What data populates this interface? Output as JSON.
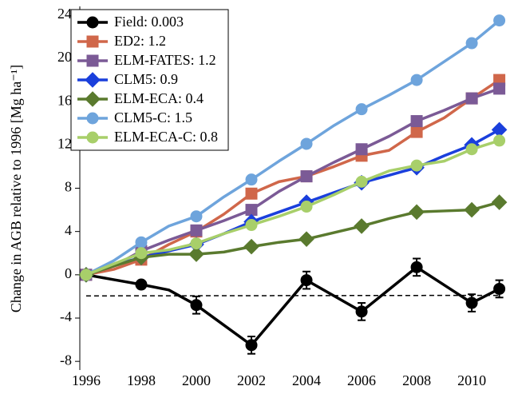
{
  "chart_data": {
    "type": "line",
    "y_label": "Change in AGB relative to 1996 [Mg ha⁻¹]",
    "x": [
      1996,
      1997,
      1998,
      1999,
      2000,
      2001,
      2002,
      2003,
      2004,
      2005,
      2006,
      2007,
      2008,
      2009,
      2010,
      2011
    ],
    "xlim": [
      1995.77,
      2011.33
    ],
    "xticks": [
      1996,
      1998,
      2000,
      2002,
      2004,
      2006,
      2008,
      2010
    ],
    "ylim": [
      -8.8,
      24.8
    ],
    "yticks": [
      -8,
      -4,
      0,
      4,
      8,
      12,
      16,
      20,
      24
    ],
    "legend": "upper left",
    "series": [
      {
        "name": "Field: 0.003",
        "color": "#000000",
        "marker": "circle",
        "values": [
          0,
          -0.45,
          -0.9,
          -1.4,
          -2.8,
          -4.65,
          -6.5,
          -3.5,
          -0.5,
          -1.95,
          -3.4,
          -1.35,
          0.7,
          -0.95,
          -2.6,
          -1.3
        ],
        "errors": [
          0.2,
          null,
          0.3,
          null,
          0.8,
          null,
          0.8,
          null,
          0.8,
          null,
          0.8,
          null,
          0.8,
          null,
          0.8,
          0.8
        ],
        "trend": [
          -1.95,
          -1.9
        ]
      },
      {
        "name": "ED2: 1.2",
        "color": "#d0674a",
        "marker": "square",
        "values": [
          0,
          0.5,
          1.4,
          2.8,
          4.0,
          5.6,
          7.5,
          8.6,
          9.1,
          10.0,
          11.0,
          11.5,
          13.2,
          14.5,
          16.3,
          18.0
        ]
      },
      {
        "name": "ELM-FATES: 1.2",
        "color": "#7b5a96",
        "marker": "square",
        "values": [
          0,
          0.8,
          2.2,
          3.2,
          4.1,
          5.0,
          6.0,
          7.7,
          9.1,
          10.4,
          11.6,
          12.8,
          14.2,
          15.2,
          16.3,
          17.2
        ]
      },
      {
        "name": "CLM5: 0.9",
        "color": "#1a3fdc",
        "marker": "diamond",
        "values": [
          0,
          0.9,
          1.6,
          2.2,
          2.8,
          3.8,
          4.9,
          5.8,
          6.7,
          7.6,
          8.5,
          9.2,
          9.9,
          11.0,
          12.0,
          13.4
        ]
      },
      {
        "name": "ELM-ECA: 0.4",
        "color": "#5a7a2e",
        "marker": "diamond",
        "values": [
          0,
          0.8,
          1.6,
          1.9,
          1.9,
          2.1,
          2.6,
          3.0,
          3.3,
          3.9,
          4.5,
          5.2,
          5.8,
          5.9,
          6.0,
          6.7
        ]
      },
      {
        "name": "CLM5-C: 1.5",
        "color": "#6ea4dc",
        "marker": "circle",
        "values": [
          0,
          1.3,
          3.0,
          4.5,
          5.4,
          7.2,
          8.8,
          10.5,
          12.1,
          13.8,
          15.3,
          16.6,
          18.0,
          19.7,
          21.4,
          23.5
        ]
      },
      {
        "name": "ELM-ECA-C: 0.8",
        "color": "#a8cf6a",
        "marker": "circle",
        "values": [
          0,
          1.0,
          2.0,
          2.3,
          2.9,
          3.8,
          4.6,
          5.4,
          6.3,
          7.4,
          8.6,
          9.6,
          10.1,
          10.5,
          11.6,
          12.4
        ]
      }
    ]
  }
}
